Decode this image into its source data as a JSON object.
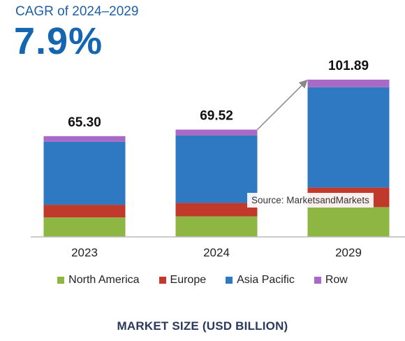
{
  "header": {
    "cagr_label": "CAGR of 2024–2029",
    "cagr_value": "7.9%"
  },
  "source": "Source: MarketsandMarkets",
  "footer_title": "MARKET SIZE (USD BILLION)",
  "colors": {
    "north_america": "#8db642",
    "europe": "#c0392b",
    "asia_pacific": "#2f79c2",
    "row": "#a96ac7",
    "axis": "#bbbbbb",
    "arrow": "#888888"
  },
  "chart_data": {
    "type": "bar",
    "stacked": true,
    "categories": [
      "2023",
      "2024",
      "2029"
    ],
    "totals": [
      65.3,
      69.52,
      101.89
    ],
    "total_labels": [
      "65.30",
      "69.52",
      "101.89"
    ],
    "series": [
      {
        "name": "North America",
        "color": "#8db642",
        "values": [
          12.6,
          13.3,
          19.3
        ]
      },
      {
        "name": "Europe",
        "color": "#c0392b",
        "values": [
          8.2,
          8.7,
          12.7
        ]
      },
      {
        "name": "Asia Pacific",
        "color": "#2f79c2",
        "values": [
          40.9,
          43.7,
          65.0
        ]
      },
      {
        "name": "Row",
        "color": "#a96ac7",
        "values": [
          3.6,
          3.82,
          4.89
        ]
      }
    ],
    "ylim": [
      0,
      101.89
    ],
    "grid": false,
    "legend_position": "bottom",
    "annotation": "arrow from 2024 bar top to 2029 bar top"
  }
}
